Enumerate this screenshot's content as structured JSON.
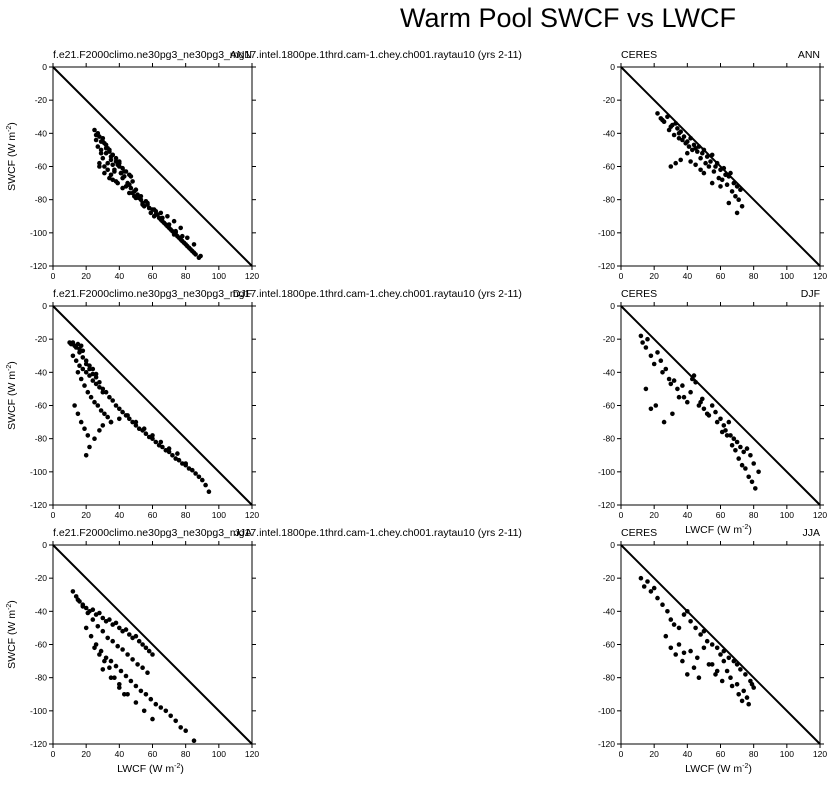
{
  "figure": {
    "title": "Warm Pool SWCF vs LWCF"
  },
  "axis_labels": {
    "x_prefix": "LWCF (W m",
    "x_sup": "-2",
    "x_suffix": ")",
    "y_prefix": "SWCF (W m",
    "y_sup": "-2",
    "y_suffix": ")"
  },
  "chart_data": [
    {
      "type": "scatter",
      "panel_row": 1,
      "panel_side": "left",
      "left_label": "f.e21.F2000climo.ne30pg3_ne30pg3_mg17.intel.1800pe.1thrd.cam-1.chey.ch001.raytau10 (yrs 2-11)",
      "right_label": "ANN",
      "xlabel": "",
      "ylabel": "SWCF (W m-2)",
      "xlim": [
        0,
        120
      ],
      "ylim": [
        -120,
        0
      ],
      "xticks": [
        0,
        20,
        40,
        60,
        80,
        100,
        120
      ],
      "yticks": [
        0,
        -20,
        -40,
        -60,
        -80,
        -100,
        -120
      ],
      "reference_line": [
        [
          0,
          0
        ],
        [
          120,
          -120
        ]
      ],
      "x": [
        25,
        27,
        26,
        28,
        30,
        27,
        29,
        31,
        33,
        30,
        28,
        32,
        34,
        35,
        36,
        33,
        31,
        38,
        40,
        37,
        35,
        41,
        43,
        39,
        36,
        42,
        45,
        44,
        47,
        46,
        48,
        50,
        49,
        52,
        51,
        54,
        53,
        56,
        55,
        58,
        57,
        60,
        59,
        62,
        61,
        64,
        63,
        66,
        65,
        68,
        67,
        70,
        69,
        72,
        71,
        74,
        73,
        76,
        75,
        78,
        77,
        80,
        79,
        82,
        81,
        84,
        83,
        86,
        85,
        88,
        30,
        32,
        34,
        36,
        38,
        40,
        42,
        44,
        46,
        48,
        29,
        33,
        37,
        41,
        45,
        49,
        53,
        57,
        61,
        65,
        69,
        73,
        77,
        81,
        85,
        89,
        35,
        39,
        43,
        47,
        28,
        31,
        34,
        38,
        42,
        46,
        50,
        54,
        58,
        62,
        66,
        70,
        74,
        78,
        26,
        29,
        32,
        36,
        40
      ],
      "y": [
        -38,
        -40,
        -44,
        -42,
        -43,
        -48,
        -50,
        -46,
        -49,
        -55,
        -58,
        -52,
        -51,
        -56,
        -59,
        -62,
        -60,
        -57,
        -60,
        -63,
        -65,
        -64,
        -66,
        -70,
        -68,
        -67,
        -70,
        -72,
        -73,
        -71,
        -76,
        -74,
        -78,
        -79,
        -77,
        -82,
        -80,
        -81,
        -84,
        -85,
        -83,
        -86,
        -88,
        -87,
        -90,
        -91,
        -89,
        -93,
        -92,
        -95,
        -94,
        -97,
        -96,
        -99,
        -98,
        -100,
        -101,
        -103,
        -102,
        -105,
        -104,
        -107,
        -106,
        -109,
        -108,
        -111,
        -110,
        -113,
        -112,
        -115,
        -45,
        -47,
        -50,
        -53,
        -55,
        -58,
        -61,
        -63,
        -65,
        -69,
        -52,
        -58,
        -62,
        -64,
        -71,
        -75,
        -78,
        -82,
        -86,
        -88,
        -90,
        -93,
        -97,
        -103,
        -107,
        -114,
        -54,
        -59,
        -63,
        -66,
        -60,
        -64,
        -67,
        -69,
        -73,
        -76,
        -79,
        -83,
        -85,
        -89,
        -91,
        -95,
        -99,
        -102,
        -41,
        -45,
        -49,
        -53,
        -57
      ]
    },
    {
      "type": "scatter",
      "panel_row": 1,
      "panel_side": "right",
      "left_label": "CERES",
      "right_label": "ANN",
      "xlabel": "",
      "ylabel": "",
      "xlim": [
        0,
        120
      ],
      "ylim": [
        -120,
        0
      ],
      "xticks": [
        0,
        20,
        40,
        60,
        80,
        100,
        120
      ],
      "yticks": [
        0,
        -20,
        -40,
        -60,
        -80,
        -100,
        -120
      ],
      "reference_line": [
        [
          0,
          0
        ],
        [
          120,
          -120
        ]
      ],
      "x": [
        22,
        24,
        26,
        28,
        30,
        31,
        33,
        35,
        36,
        38,
        40,
        42,
        44,
        45,
        47,
        49,
        50,
        52,
        54,
        55,
        57,
        58,
        60,
        62,
        63,
        65,
        66,
        68,
        70,
        72,
        25,
        29,
        32,
        34,
        37,
        39,
        41,
        43,
        46,
        48,
        51,
        53,
        56,
        59,
        61,
        64,
        67,
        69,
        71,
        73,
        30,
        33,
        36,
        42,
        48,
        55,
        60,
        65,
        70,
        35,
        40,
        45,
        50
      ],
      "y": [
        -28,
        -31,
        -33,
        -30,
        -36,
        -35,
        -34,
        -40,
        -39,
        -42,
        -45,
        -43,
        -47,
        -49,
        -48,
        -52,
        -50,
        -54,
        -57,
        -53,
        -60,
        -58,
        -62,
        -61,
        -65,
        -66,
        -64,
        -70,
        -72,
        -74,
        -32,
        -38,
        -41,
        -37,
        -44,
        -46,
        -48,
        -50,
        -51,
        -55,
        -58,
        -60,
        -63,
        -67,
        -68,
        -71,
        -75,
        -78,
        -80,
        -84,
        -60,
        -58,
        -56,
        -57,
        -62,
        -70,
        -72,
        -82,
        -88,
        -43,
        -52,
        -59,
        -64
      ]
    },
    {
      "type": "scatter",
      "panel_row": 2,
      "panel_side": "left",
      "left_label": "f.e21.F2000climo.ne30pg3_ne30pg3_mg17.intel.1800pe.1thrd.cam-1.chey.ch001.raytau10 (yrs 2-11)",
      "right_label": "DJF",
      "xlabel": "",
      "ylabel": "SWCF (W m-2)",
      "xlim": [
        0,
        120
      ],
      "ylim": [
        -120,
        0
      ],
      "xticks": [
        0,
        20,
        40,
        60,
        80,
        100,
        120
      ],
      "yticks": [
        0,
        -20,
        -40,
        -60,
        -80,
        -100,
        -120
      ],
      "reference_line": [
        [
          0,
          0
        ],
        [
          120,
          -120
        ]
      ],
      "x": [
        10,
        11,
        12,
        13,
        14,
        15,
        16,
        17,
        18,
        12,
        14,
        16,
        18,
        20,
        22,
        24,
        26,
        28,
        30,
        15,
        17,
        19,
        21,
        23,
        25,
        27,
        29,
        31,
        33,
        35,
        20,
        22,
        24,
        26,
        28,
        30,
        32,
        34,
        36,
        38,
        40,
        42,
        44,
        46,
        48,
        50,
        52,
        54,
        56,
        58,
        60,
        62,
        64,
        66,
        68,
        70,
        72,
        74,
        76,
        78,
        80,
        82,
        84,
        86,
        88,
        90,
        92,
        94,
        20,
        22,
        25,
        28,
        30,
        35,
        40,
        45,
        50,
        55,
        60,
        65,
        70,
        75,
        80,
        16,
        18,
        20,
        22,
        24,
        26,
        13,
        15,
        17,
        19,
        21
      ],
      "y": [
        -22,
        -23,
        -22,
        -24,
        -25,
        -23,
        -26,
        -24,
        -27,
        -30,
        -33,
        -36,
        -38,
        -40,
        -42,
        -45,
        -47,
        -49,
        -52,
        -40,
        -44,
        -48,
        -52,
        -55,
        -58,
        -60,
        -63,
        -65,
        -67,
        -70,
        -35,
        -38,
        -41,
        -43,
        -46,
        -50,
        -52,
        -55,
        -57,
        -60,
        -62,
        -64,
        -66,
        -68,
        -70,
        -72,
        -74,
        -75,
        -77,
        -79,
        -80,
        -82,
        -84,
        -85,
        -87,
        -88,
        -90,
        -92,
        -93,
        -95,
        -96,
        -98,
        -99,
        -101,
        -103,
        -105,
        -108,
        -112,
        -90,
        -85,
        -80,
        -75,
        -72,
        -70,
        -68,
        -66,
        -70,
        -74,
        -78,
        -82,
        -86,
        -89,
        -95,
        -28,
        -31,
        -33,
        -36,
        -38,
        -41,
        -60,
        -65,
        -70,
        -74,
        -78
      ]
    },
    {
      "type": "scatter",
      "panel_row": 2,
      "panel_side": "right",
      "left_label": "CERES",
      "right_label": "DJF",
      "xlabel": "LWCF (W m-2)",
      "ylabel": "",
      "xlim": [
        0,
        120
      ],
      "ylim": [
        -120,
        0
      ],
      "xticks": [
        0,
        20,
        40,
        60,
        80,
        100,
        120
      ],
      "yticks": [
        0,
        -20,
        -40,
        -60,
        -80,
        -100,
        -120
      ],
      "reference_line": [
        [
          0,
          0
        ],
        [
          120,
          -120
        ]
      ],
      "x": [
        12,
        13,
        15,
        16,
        18,
        20,
        22,
        24,
        25,
        27,
        29,
        30,
        32,
        34,
        35,
        37,
        40,
        42,
        44,
        45,
        47,
        49,
        50,
        52,
        55,
        57,
        58,
        60,
        62,
        63,
        65,
        66,
        68,
        70,
        72,
        74,
        76,
        78,
        80,
        83,
        15,
        18,
        21,
        26,
        31,
        38,
        43,
        48,
        53,
        61,
        64,
        67,
        69,
        71,
        73,
        75,
        77,
        79,
        81
      ],
      "y": [
        -18,
        -22,
        -25,
        -20,
        -30,
        -35,
        -28,
        -33,
        -40,
        -38,
        -44,
        -47,
        -45,
        -50,
        -55,
        -48,
        -58,
        -52,
        -42,
        -46,
        -60,
        -56,
        -62,
        -65,
        -60,
        -64,
        -70,
        -68,
        -72,
        -75,
        -70,
        -78,
        -80,
        -82,
        -85,
        -88,
        -86,
        -90,
        -95,
        -100,
        -50,
        -62,
        -60,
        -70,
        -65,
        -55,
        -44,
        -58,
        -66,
        -76,
        -78,
        -84,
        -87,
        -92,
        -96,
        -98,
        -103,
        -106,
        -110
      ]
    },
    {
      "type": "scatter",
      "panel_row": 3,
      "panel_side": "left",
      "left_label": "f.e21.F2000climo.ne30pg3_ne30pg3_mg17.intel.1800pe.1thrd.cam-1.chey.ch001.raytau10 (yrs 2-11)",
      "right_label": "JJA",
      "xlabel": "LWCF (W m-2)",
      "ylabel": "SWCF (W m-2)",
      "xlim": [
        0,
        120
      ],
      "ylim": [
        -120,
        0
      ],
      "xticks": [
        0,
        20,
        40,
        60,
        80,
        100,
        120
      ],
      "yticks": [
        0,
        -20,
        -40,
        -60,
        -80,
        -100,
        -120
      ],
      "reference_line": [
        [
          0,
          0
        ],
        [
          120,
          -120
        ]
      ],
      "x": [
        12,
        14,
        16,
        18,
        20,
        22,
        24,
        26,
        28,
        30,
        32,
        34,
        36,
        38,
        40,
        42,
        44,
        46,
        48,
        50,
        52,
        54,
        56,
        58,
        60,
        15,
        18,
        21,
        24,
        27,
        30,
        33,
        36,
        39,
        42,
        45,
        48,
        51,
        54,
        57,
        20,
        23,
        26,
        29,
        32,
        35,
        38,
        41,
        44,
        47,
        50,
        53,
        56,
        59,
        62,
        65,
        68,
        71,
        74,
        77,
        80,
        85,
        30,
        35,
        40,
        45,
        50,
        55,
        60,
        25,
        28,
        31,
        34,
        37,
        40,
        43
      ],
      "y": [
        -28,
        -31,
        -34,
        -36,
        -38,
        -40,
        -39,
        -42,
        -41,
        -44,
        -46,
        -45,
        -48,
        -47,
        -50,
        -52,
        -51,
        -54,
        -56,
        -55,
        -58,
        -60,
        -62,
        -64,
        -66,
        -33,
        -37,
        -41,
        -45,
        -49,
        -52,
        -56,
        -58,
        -61,
        -63,
        -66,
        -69,
        -72,
        -74,
        -77,
        -50,
        -55,
        -60,
        -64,
        -68,
        -70,
        -73,
        -76,
        -79,
        -82,
        -85,
        -88,
        -90,
        -93,
        -96,
        -98,
        -100,
        -103,
        -106,
        -110,
        -112,
        -118,
        -75,
        -80,
        -86,
        -90,
        -95,
        -100,
        -105,
        -62,
        -66,
        -70,
        -74,
        -80,
        -84,
        -90
      ]
    },
    {
      "type": "scatter",
      "panel_row": 3,
      "panel_side": "right",
      "left_label": "CERES",
      "right_label": "JJA",
      "xlabel": "LWCF (W m-2)",
      "ylabel": "",
      "xlim": [
        0,
        120
      ],
      "ylim": [
        -120,
        0
      ],
      "xticks": [
        0,
        20,
        40,
        60,
        80,
        100,
        120
      ],
      "yticks": [
        0,
        -20,
        -40,
        -60,
        -80,
        -100,
        -120
      ],
      "reference_line": [
        [
          0,
          0
        ],
        [
          120,
          -120
        ]
      ],
      "x": [
        12,
        14,
        16,
        18,
        20,
        22,
        25,
        28,
        30,
        32,
        35,
        38,
        40,
        42,
        45,
        48,
        50,
        52,
        55,
        58,
        60,
        62,
        65,
        68,
        70,
        72,
        75,
        78,
        80,
        35,
        38,
        42,
        46,
        50,
        55,
        58,
        62,
        66,
        70,
        74,
        76,
        27,
        30,
        33,
        37,
        40,
        44,
        47,
        53,
        57,
        61,
        64,
        67,
        71,
        73,
        77,
        79
      ],
      "y": [
        -20,
        -25,
        -22,
        -28,
        -26,
        -32,
        -36,
        -40,
        -45,
        -48,
        -50,
        -42,
        -40,
        -46,
        -50,
        -54,
        -52,
        -58,
        -60,
        -62,
        -66,
        -64,
        -68,
        -70,
        -72,
        -75,
        -78,
        -82,
        -86,
        -60,
        -65,
        -64,
        -68,
        -62,
        -72,
        -76,
        -70,
        -80,
        -84,
        -88,
        -92,
        -55,
        -62,
        -66,
        -70,
        -78,
        -74,
        -80,
        -72,
        -78,
        -82,
        -76,
        -85,
        -90,
        -94,
        -96,
        -84
      ]
    }
  ]
}
